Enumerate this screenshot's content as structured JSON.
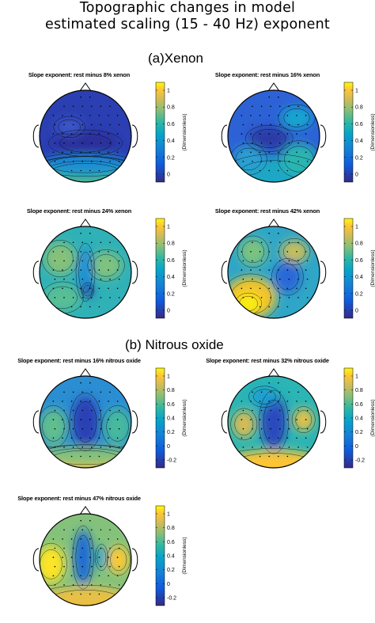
{
  "figure": {
    "title_line1": "Topographic changes in model",
    "title_line2": "estimated scaling (15 - 40 Hz) exponent"
  },
  "sections": [
    {
      "label": "(a)",
      "name": "Xenon"
    },
    {
      "label": "(b)",
      "name": "Nitrous oxide"
    }
  ],
  "panels": [
    {
      "title": "Slope exponent: rest minus 8% xenon",
      "colorbar": {
        "ticks": [
          "1",
          "0.8",
          "0.6",
          "0.4",
          "0.2",
          "0"
        ],
        "label": "(Dimensionless)"
      }
    },
    {
      "title": "Slope exponent: rest minus 16% xenon",
      "colorbar": {
        "ticks": [
          "1",
          "0.8",
          "0.6",
          "0.4",
          "0.2",
          "0"
        ],
        "label": "(Dimensionless)"
      }
    },
    {
      "title": "Slope exponent: rest minus 24% xenon",
      "colorbar": {
        "ticks": [
          "1",
          "0.8",
          "0.6",
          "0.4",
          "0.2",
          "0"
        ],
        "label": "(Dimensionless)"
      }
    },
    {
      "title": "Slope exponent: rest minus 42% xenon",
      "colorbar": {
        "ticks": [
          "1",
          "0.8",
          "0.6",
          "0.4",
          "0.2",
          "0"
        ],
        "label": "(Dimensionless)"
      }
    },
    {
      "title": "Slope exponent: rest minus 16% nitrous oxide",
      "colorbar": {
        "ticks": [
          "1",
          "0.8",
          "0.6",
          "0.4",
          "0.2",
          "0",
          "-0.2"
        ],
        "label": "(Dimensionless)"
      }
    },
    {
      "title": "Slope exponent: rest minus 32% nitrous oxide",
      "colorbar": {
        "ticks": [
          "1",
          "0.8",
          "0.6",
          "0.4",
          "0.2",
          "0",
          "-0.2"
        ],
        "label": "(Dimensionless)"
      }
    },
    {
      "title": "Slope exponent: rest minus 47% nitrous oxide",
      "colorbar": {
        "ticks": [
          "1",
          "0.8",
          "0.6",
          "0.4",
          "0.2",
          "0",
          "-0.2"
        ],
        "label": "(Dimensionless)"
      }
    }
  ]
}
